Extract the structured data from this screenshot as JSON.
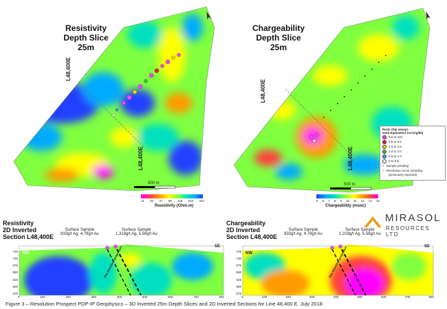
{
  "resistivity_map": {
    "title_line1": "Resistivity",
    "title_line2": "Depth Slice",
    "title_line3": "25m",
    "line_label_top": "L48,400E",
    "line_label_bottom": "L48,400E",
    "scale_label": "500 m",
    "colorbar_ticks": [
      "11",
      "20",
      "37",
      "68",
      "119",
      "242",
      "422"
    ],
    "colorbar_title": "Resistivity (Ohm.m)",
    "colorbar_colors": [
      "#ff00ff",
      "#ff4040",
      "#ff9a00",
      "#ffff00",
      "#7fff3f",
      "#00e0c0",
      "#00aaff",
      "#2040ff"
    ]
  },
  "chargeability_map": {
    "title_line1": "Chargeability",
    "title_line2": "Depth Slice",
    "title_line3": "25m",
    "line_label_top": "L48,400E",
    "line_label_bottom": "L48,400E",
    "scale_label": "500 m",
    "colorbar_ticks": [
      "5",
      "6",
      "7",
      "8",
      "9",
      "10",
      "11",
      "12",
      "13",
      "15"
    ],
    "colorbar_title": "Chargeability (msec)",
    "colorbar_colors": [
      "#2040ff",
      "#00aaff",
      "#00e0c0",
      "#7fff3f",
      "#ffff00",
      "#ff9a00",
      "#ff4040",
      "#ff00ff"
    ]
  },
  "legend": {
    "title_line1": "Rock chip assays",
    "title_line2": "Gold Equivalent Au+(Ag/60)",
    "items": [
      {
        "label": "5.0 to 103",
        "color": "#ff40ff"
      },
      {
        "label": "2.5 to 5.0",
        "color": "#e02020"
      },
      {
        "label": "2.0 to 2.5",
        "color": "#ffcc00"
      },
      {
        "label": "1.0 to 2.0",
        "color": "#33cc33"
      },
      {
        "label": "0.5 to 1.0",
        "color": "#33aaff"
      },
      {
        "label": "0 to 0.5",
        "color": "#ffffff"
      }
    ],
    "pending_label": "Sample pending",
    "recon_label_line1": "Resolution recon sampling",
    "recon_label_line2": "(previously reported)"
  },
  "logo": {
    "name": "MIRASOL",
    "subtitle": "RESOURCES LTD"
  },
  "resistivity_section": {
    "title_line1": "Resistivity",
    "title_line2": "2D Inverted",
    "title_line3": "Section L48,400E",
    "sample1_title": "Surface Sample",
    "sample1_value": "833g/t Ag, 4.79g/t Au",
    "sample2_title": "Surface Sample",
    "sample2_value": "1,319g/t Ag, 5.59g/t Au",
    "left_tag": "NW",
    "right_tag": "SE",
    "structure_label": "Dip-structure projection"
  },
  "chargeability_section": {
    "title_line1": "Chargeability",
    "title_line2": "2D Inverted",
    "title_line3": "Section L48,400E",
    "sample1_title": "Surface Sample",
    "sample1_value": "833g/t Ag, 4.79g/t Au",
    "sample2_title": "Surface Sample",
    "sample2_value": "1,319g/t Ag, 5.59g/t Au",
    "left_tag": "NW",
    "right_tag": "SE",
    "structure_label": "Dip-structure projection"
  },
  "section_axis": {
    "elevation_ticks": [
      "725",
      "700",
      "675",
      "650",
      "625",
      "600",
      "575"
    ],
    "distance_ticks": [
      "0",
      "100",
      "200",
      "300",
      "400",
      "500",
      "600",
      "700",
      "800"
    ]
  },
  "caption": "Figure 3 – Resolution Prospect PDP-IP Geophysics – 3D Inverted 25m Depth Slices and 2D Inverted Sections for Line 48,400 E. July 2018"
}
